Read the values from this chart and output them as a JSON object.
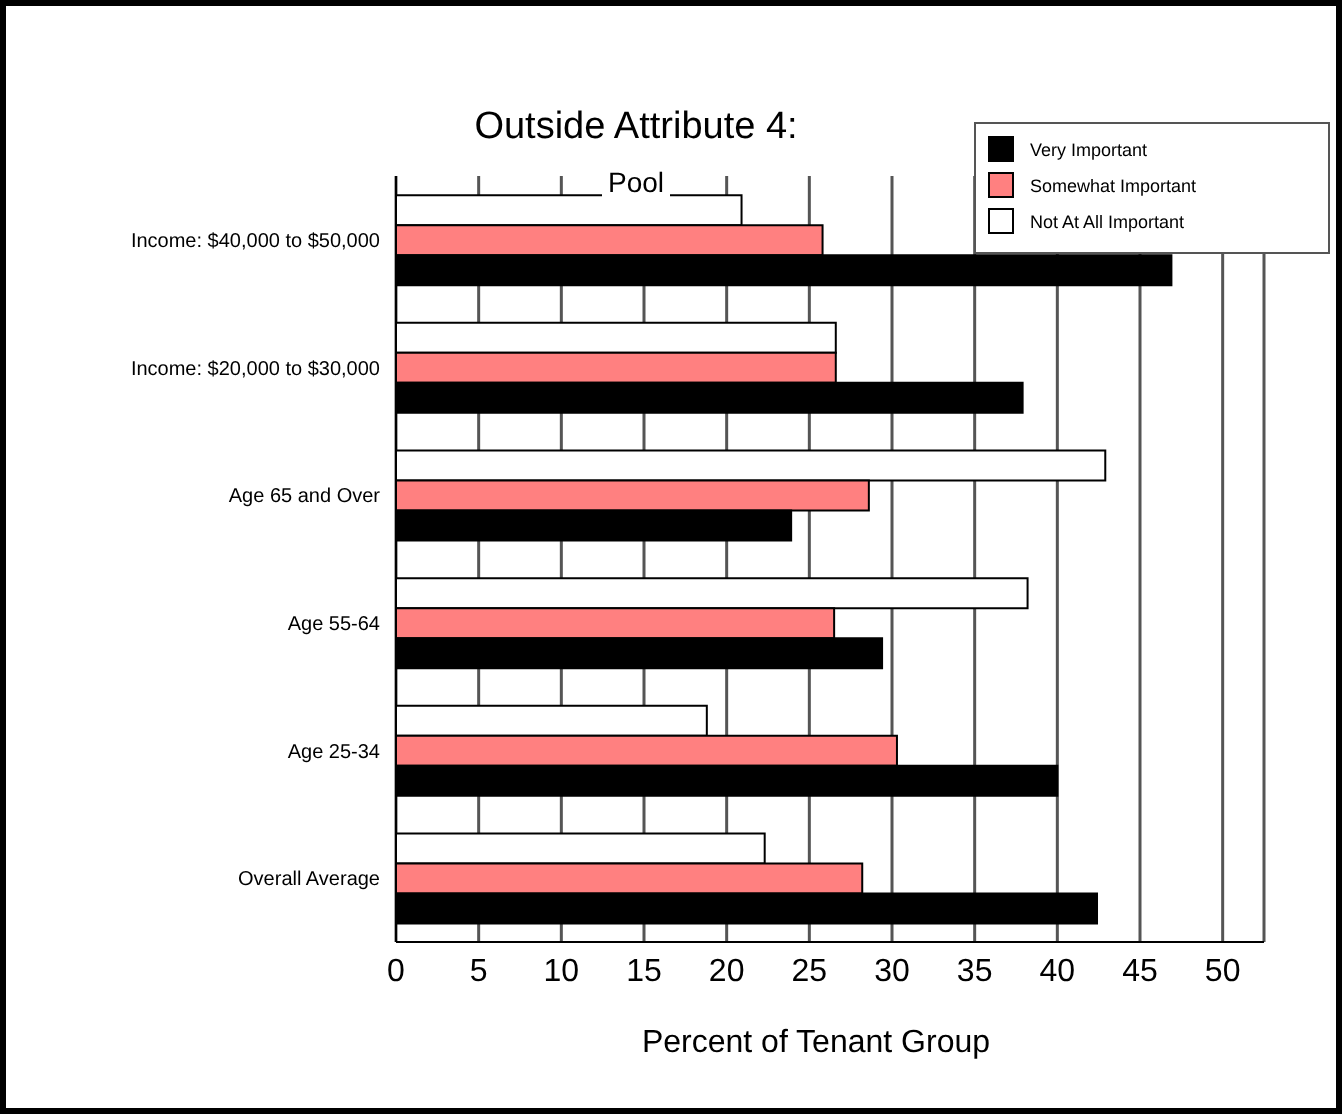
{
  "chart_data": {
    "type": "bar",
    "orientation": "horizontal",
    "title": "Outside Attribute 4:",
    "subtitle": "Pool",
    "xlabel": "Percent of Tenant Group",
    "categories": [
      "Income: $40,000 to $50,000",
      "Income: $20,000 to $30,000",
      "Age 65 and Over",
      "Age 55-64",
      "Age 25-34",
      "Overall Average"
    ],
    "series": [
      {
        "name": "Very Important",
        "color": "#000000",
        "values": [
          46.9,
          37.9,
          23.9,
          29.4,
          40.0,
          42.4
        ]
      },
      {
        "name": "Somewhat Important",
        "color": "#ff8080",
        "values": [
          25.8,
          26.6,
          28.6,
          26.5,
          30.3,
          28.2
        ]
      },
      {
        "name": "Not At All Important",
        "color": "#ffffff",
        "values": [
          20.9,
          26.6,
          42.9,
          38.2,
          18.8,
          22.3
        ]
      }
    ],
    "xlim": [
      0,
      52.5
    ],
    "xticks": [
      0,
      5,
      10,
      15,
      20,
      25,
      30,
      35,
      40,
      45,
      50
    ],
    "grid": "x",
    "legend": "top right"
  }
}
